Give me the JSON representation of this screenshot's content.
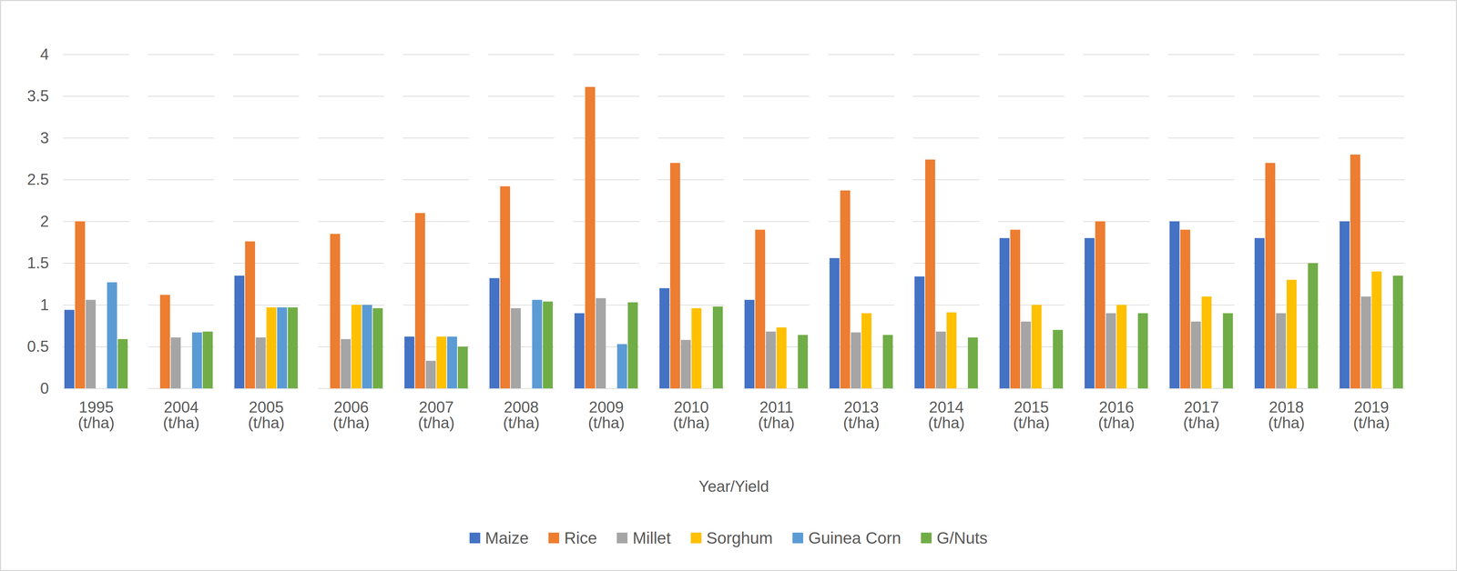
{
  "chart_data": {
    "type": "bar",
    "x_label": "Year/Yield",
    "categories": [
      "1995 (t/ha)",
      "2004 (t/ha)",
      "2005 (t/ha)",
      "2006 (t/ha)",
      "2007 (t/ha)",
      "2008 (t/ha)",
      "2009 (t/ha)",
      "2010 (t/ha)",
      "2011 (t/ha)",
      "2013 (t/ha)",
      "2014 (t/ha)",
      "2015 (t/ha)",
      "2016 (t/ha)",
      "2017 (t/ha)",
      "2018 (t/ha)",
      "2019 (t/ha)"
    ],
    "series": [
      {
        "name": "Maize",
        "color": "#4472c4",
        "values": [
          0.94,
          null,
          1.35,
          null,
          0.62,
          1.32,
          0.9,
          1.2,
          1.06,
          1.56,
          1.34,
          1.8,
          1.8,
          2.0,
          1.8,
          2.0
        ]
      },
      {
        "name": "Rice",
        "color": "#ed7d31",
        "values": [
          2.0,
          1.12,
          1.76,
          1.85,
          2.1,
          2.42,
          3.61,
          2.7,
          1.9,
          2.37,
          2.74,
          1.9,
          2.0,
          1.9,
          2.7,
          2.8
        ]
      },
      {
        "name": "Millet",
        "color": "#a5a5a5",
        "values": [
          1.06,
          0.61,
          0.61,
          0.59,
          0.33,
          0.96,
          1.08,
          0.58,
          0.68,
          0.67,
          0.68,
          0.8,
          0.9,
          0.8,
          0.9,
          1.1
        ]
      },
      {
        "name": "Sorghum",
        "color": "#ffc000",
        "values": [
          null,
          null,
          0.97,
          1.0,
          0.62,
          null,
          null,
          0.96,
          0.73,
          0.9,
          0.91,
          1.0,
          1.0,
          1.1,
          1.3,
          1.4
        ]
      },
      {
        "name": "Guinea Corn",
        "color": "#5b9bd5",
        "values": [
          1.27,
          0.67,
          0.97,
          1.0,
          0.62,
          1.06,
          0.53,
          null,
          null,
          null,
          null,
          null,
          null,
          null,
          null,
          null
        ]
      },
      {
        "name": "G/Nuts",
        "color": "#70ad47",
        "values": [
          0.59,
          0.68,
          0.97,
          0.96,
          0.5,
          1.04,
          1.03,
          0.98,
          0.64,
          0.64,
          0.61,
          0.7,
          0.9,
          0.9,
          1.5,
          1.35
        ]
      }
    ],
    "ylim": [
      0,
      4
    ],
    "yticks": [
      0,
      0.5,
      1,
      1.5,
      2,
      2.5,
      3,
      3.5,
      4
    ],
    "grid": true,
    "legend": "bottom"
  }
}
